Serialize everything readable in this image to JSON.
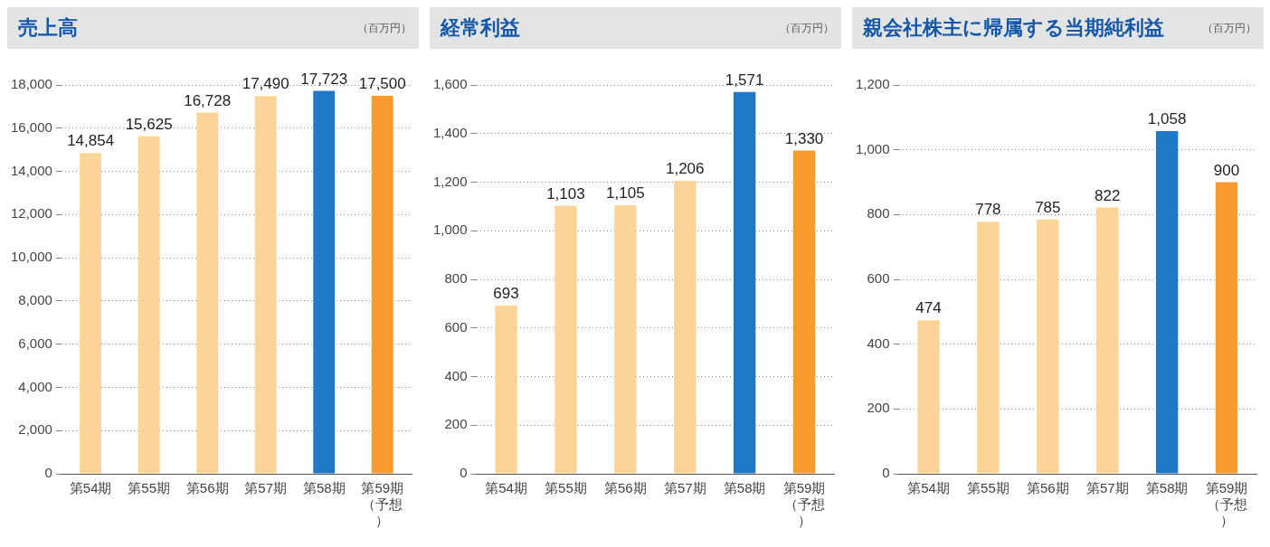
{
  "chart_data": [
    {
      "type": "bar",
      "title": "売上高",
      "subtitle": "（百万円）",
      "categories": [
        "第54期",
        "第55期",
        "第56期",
        "第57期",
        "第58期",
        "第59期（予想）"
      ],
      "values": [
        14854,
        15625,
        16728,
        17490,
        17723,
        17500
      ],
      "value_labels": [
        "14,854",
        "15,625",
        "16,728",
        "17,490",
        "17,723",
        "17,500"
      ],
      "colors": [
        "#fdd497",
        "#fdd497",
        "#fdd497",
        "#fdd497",
        "#1f78c8",
        "#f89a2e"
      ],
      "ylim": [
        0,
        18000
      ],
      "yticks": [
        0,
        {
          "value": 2000,
          "label": "2,000"
        },
        {
          "value": 4000,
          "label": "4,000"
        },
        {
          "value": 6000,
          "label": "6,000"
        },
        {
          "value": 8000,
          "label": "8,000"
        },
        {
          "value": 10000,
          "label": "10,000"
        },
        {
          "value": 12000,
          "label": "12,000"
        },
        {
          "value": 14000,
          "label": "14,000"
        },
        {
          "value": 16000,
          "label": "16,000"
        },
        {
          "value": 18000,
          "label": "18,000"
        }
      ],
      "grid": "y"
    },
    {
      "type": "bar",
      "title": "経常利益",
      "subtitle": "（百万円）",
      "categories": [
        "第54期",
        "第55期",
        "第56期",
        "第57期",
        "第58期",
        "第59期（予想）"
      ],
      "values": [
        693,
        1103,
        1105,
        1206,
        1571,
        1330
      ],
      "value_labels": [
        "693",
        "1,103",
        "1,105",
        "1,206",
        "1,571",
        "1,330"
      ],
      "colors": [
        "#fdd497",
        "#fdd497",
        "#fdd497",
        "#fdd497",
        "#1f78c8",
        "#f89a2e"
      ],
      "ylim": [
        0,
        1600
      ],
      "yticks": [
        0,
        200,
        400,
        600,
        800,
        {
          "value": 1000,
          "label": "1,000"
        },
        {
          "value": 1200,
          "label": "1,200"
        },
        {
          "value": 1400,
          "label": "1,400"
        },
        {
          "value": 1600,
          "label": "1,600"
        }
      ],
      "grid": "y"
    },
    {
      "type": "bar",
      "title": "親会社株主に帰属する当期純利益",
      "subtitle": "（百万円）",
      "categories": [
        "第54期",
        "第55期",
        "第56期",
        "第57期",
        "第58期",
        "第59期（予想）"
      ],
      "values": [
        474,
        778,
        785,
        822,
        1058,
        900
      ],
      "value_labels": [
        "474",
        "778",
        "785",
        "822",
        "1,058",
        "900"
      ],
      "colors": [
        "#fdd497",
        "#fdd497",
        "#fdd497",
        "#fdd497",
        "#1f78c8",
        "#f89a2e"
      ],
      "ylim": [
        0,
        1200
      ],
      "yticks": [
        0,
        200,
        400,
        600,
        800,
        {
          "value": 1000,
          "label": "1,000"
        },
        {
          "value": 1200,
          "label": "1,200"
        }
      ],
      "grid": "y"
    }
  ]
}
